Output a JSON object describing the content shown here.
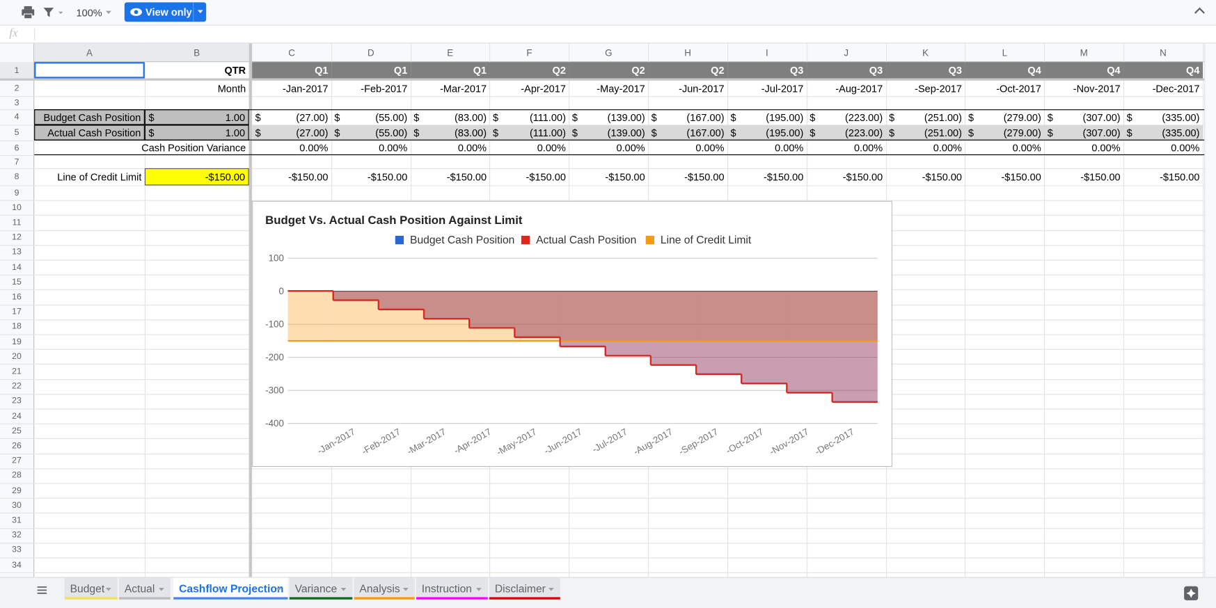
{
  "toolbar": {
    "zoom": "100%",
    "mode": "View only",
    "formula_label": "fx"
  },
  "columns": [
    "A",
    "B",
    "C",
    "D",
    "E",
    "F",
    "G",
    "H",
    "I",
    "J",
    "K",
    "L",
    "M",
    "N"
  ],
  "rows": [
    1,
    2,
    3,
    4,
    5,
    6,
    7,
    8,
    9,
    10,
    11,
    12,
    13,
    14,
    15,
    16,
    17,
    18,
    19,
    20,
    21,
    22,
    23,
    24,
    25,
    26,
    27,
    28,
    29,
    30,
    31,
    32,
    33,
    34
  ],
  "grid": {
    "1": {
      "B": "QTR",
      "C": "Q1",
      "D": "Q1",
      "E": "Q1",
      "F": "Q2",
      "G": "Q2",
      "H": "Q2",
      "I": "Q3",
      "J": "Q3",
      "K": "Q3",
      "L": "Q4",
      "M": "Q4",
      "N": "Q4"
    },
    "2": {
      "B": "Month",
      "C": "-Jan-2017",
      "D": "-Feb-2017",
      "E": "-Mar-2017",
      "F": "-Apr-2017",
      "G": "-May-2017",
      "H": "-Jun-2017",
      "I": "-Jul-2017",
      "J": "-Aug-2017",
      "K": "-Sep-2017",
      "L": "-Oct-2017",
      "M": "-Nov-2017",
      "N": "-Dec-2017"
    },
    "4": {
      "A": "Budget Cash Position",
      "B": {
        "prefix": "$",
        "text": "1.00"
      },
      "C": {
        "prefix": "$",
        "text": "(27.00)"
      },
      "D": {
        "prefix": "$",
        "text": "(55.00)"
      },
      "E": {
        "prefix": "$",
        "text": "(83.00)"
      },
      "F": {
        "prefix": "$",
        "text": "(111.00)"
      },
      "G": {
        "prefix": "$",
        "text": "(139.00)"
      },
      "H": {
        "prefix": "$",
        "text": "(167.00)"
      },
      "I": {
        "prefix": "$",
        "text": "(195.00)"
      },
      "J": {
        "prefix": "$",
        "text": "(223.00)"
      },
      "K": {
        "prefix": "$",
        "text": "(251.00)"
      },
      "L": {
        "prefix": "$",
        "text": "(279.00)"
      },
      "M": {
        "prefix": "$",
        "text": "(307.00)"
      },
      "N": {
        "prefix": "$",
        "text": "(335.00)"
      }
    },
    "5": {
      "A": "Actual Cash Position",
      "B": {
        "prefix": "$",
        "text": "1.00"
      },
      "C": {
        "prefix": "$",
        "text": "(27.00)"
      },
      "D": {
        "prefix": "$",
        "text": "(55.00)"
      },
      "E": {
        "prefix": "$",
        "text": "(83.00)"
      },
      "F": {
        "prefix": "$",
        "text": "(111.00)"
      },
      "G": {
        "prefix": "$",
        "text": "(139.00)"
      },
      "H": {
        "prefix": "$",
        "text": "(167.00)"
      },
      "I": {
        "prefix": "$",
        "text": "(195.00)"
      },
      "J": {
        "prefix": "$",
        "text": "(223.00)"
      },
      "K": {
        "prefix": "$",
        "text": "(251.00)"
      },
      "L": {
        "prefix": "$",
        "text": "(279.00)"
      },
      "M": {
        "prefix": "$",
        "text": "(307.00)"
      },
      "N": {
        "prefix": "$",
        "text": "(335.00)"
      }
    },
    "6": {
      "B": "Cash Position Variance",
      "C": "0.00%",
      "D": "0.00%",
      "E": "0.00%",
      "F": "0.00%",
      "G": "0.00%",
      "H": "0.00%",
      "I": "0.00%",
      "J": "0.00%",
      "K": "0.00%",
      "L": "0.00%",
      "M": "0.00%",
      "N": "0.00%"
    },
    "8": {
      "A": "Line of Credit Limit",
      "B": "-$150.00",
      "C": "-$150.00",
      "D": "-$150.00",
      "E": "-$150.00",
      "F": "-$150.00",
      "G": "-$150.00",
      "H": "-$150.00",
      "I": "-$150.00",
      "J": "-$150.00",
      "K": "-$150.00",
      "L": "-$150.00",
      "M": "-$150.00",
      "N": "-$150.00"
    }
  },
  "sheet_tabs": [
    {
      "name": "Budget",
      "color": "#f3e45c"
    },
    {
      "name": "Actual",
      "color": "#bdbdbd"
    },
    {
      "name": "Cashflow Projection",
      "color": "#4a86e8",
      "active": true
    },
    {
      "name": "Variance",
      "color": "#0b6e1f"
    },
    {
      "name": "Analysis",
      "color": "#ff9900"
    },
    {
      "name": "Instruction",
      "color": "#ff00ff"
    },
    {
      "name": "Disclaimer",
      "color": "#e00000"
    }
  ],
  "chart_data": {
    "type": "stepped_area",
    "title": "Budget Vs. Actual Cash Position Against Limit",
    "categories": [
      null,
      "-Jan-2017",
      "-Feb-2017",
      "-Mar-2017",
      "-Apr-2017",
      "-May-2017",
      "-Jun-2017",
      "-Jul-2017",
      "-Aug-2017",
      "-Sep-2017",
      "-Oct-2017",
      "-Nov-2017",
      "-Dec-2017"
    ],
    "series": [
      {
        "name": "Budget Cash Position",
        "color": "#2a66d4",
        "values": [
          1,
          -27,
          -55,
          -83,
          -111,
          -139,
          -167,
          -195,
          -223,
          -251,
          -279,
          -307,
          -335
        ]
      },
      {
        "name": "Actual Cash Position",
        "color": "#e3261b",
        "values": [
          1,
          -27,
          -55,
          -83,
          -111,
          -139,
          -167,
          -195,
          -223,
          -251,
          -279,
          -307,
          -335
        ]
      },
      {
        "name": "Line of Credit Limit",
        "color": "#f59a12",
        "values": [
          -150,
          -150,
          -150,
          -150,
          -150,
          -150,
          -150,
          -150,
          -150,
          -150,
          -150,
          -150,
          -150
        ]
      }
    ],
    "ylim": [
      -400,
      100
    ],
    "yticks": [
      100,
      0,
      -100,
      -200,
      -300,
      -400
    ],
    "grid": true,
    "legend": "top"
  }
}
